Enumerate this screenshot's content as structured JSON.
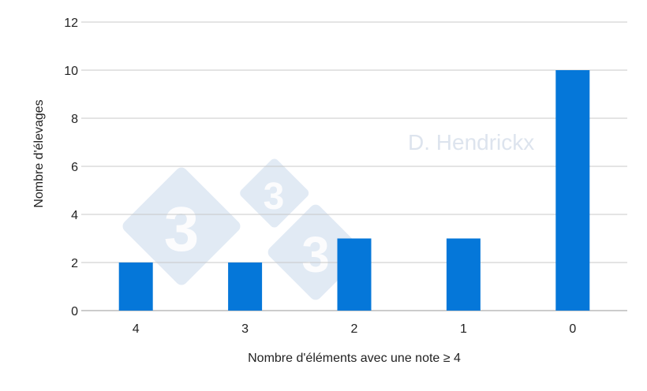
{
  "chart_data": {
    "type": "bar",
    "title": "",
    "xlabel": "Nombre d'éléments avec une note ≥ 4",
    "ylabel": "Nombre d'élevages",
    "categories": [
      "4",
      "3",
      "2",
      "1",
      "0"
    ],
    "values": [
      2,
      2,
      3,
      3,
      10
    ],
    "ylim": [
      0,
      12
    ],
    "yticks": [
      0,
      2,
      4,
      6,
      8,
      10,
      12
    ],
    "grid": true,
    "legend": "none",
    "bar_color": "#0577D9"
  },
  "watermark": {
    "text": "D. Hendrickx",
    "logo": "333"
  }
}
